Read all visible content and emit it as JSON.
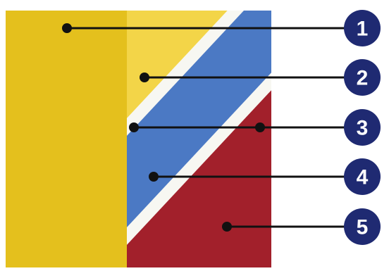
{
  "colors": {
    "background": "#ffffff",
    "yellow_dark": "#e4c01d",
    "yellow_light": "#f3d548",
    "white_stripe": "#f7f7f2",
    "blue": "#4b79c4",
    "red": "#a2202b",
    "leader_line": "#111111",
    "badge_fill": "#1f2a72",
    "badge_text": "#ffffff"
  },
  "callouts": [
    {
      "number": "1",
      "region": "yellow-dark-panel"
    },
    {
      "number": "2",
      "region": "yellow-light-panel"
    },
    {
      "number": "3",
      "region": "white-stripe"
    },
    {
      "number": "4",
      "region": "blue-stripe"
    },
    {
      "number": "5",
      "region": "red-panel"
    }
  ]
}
